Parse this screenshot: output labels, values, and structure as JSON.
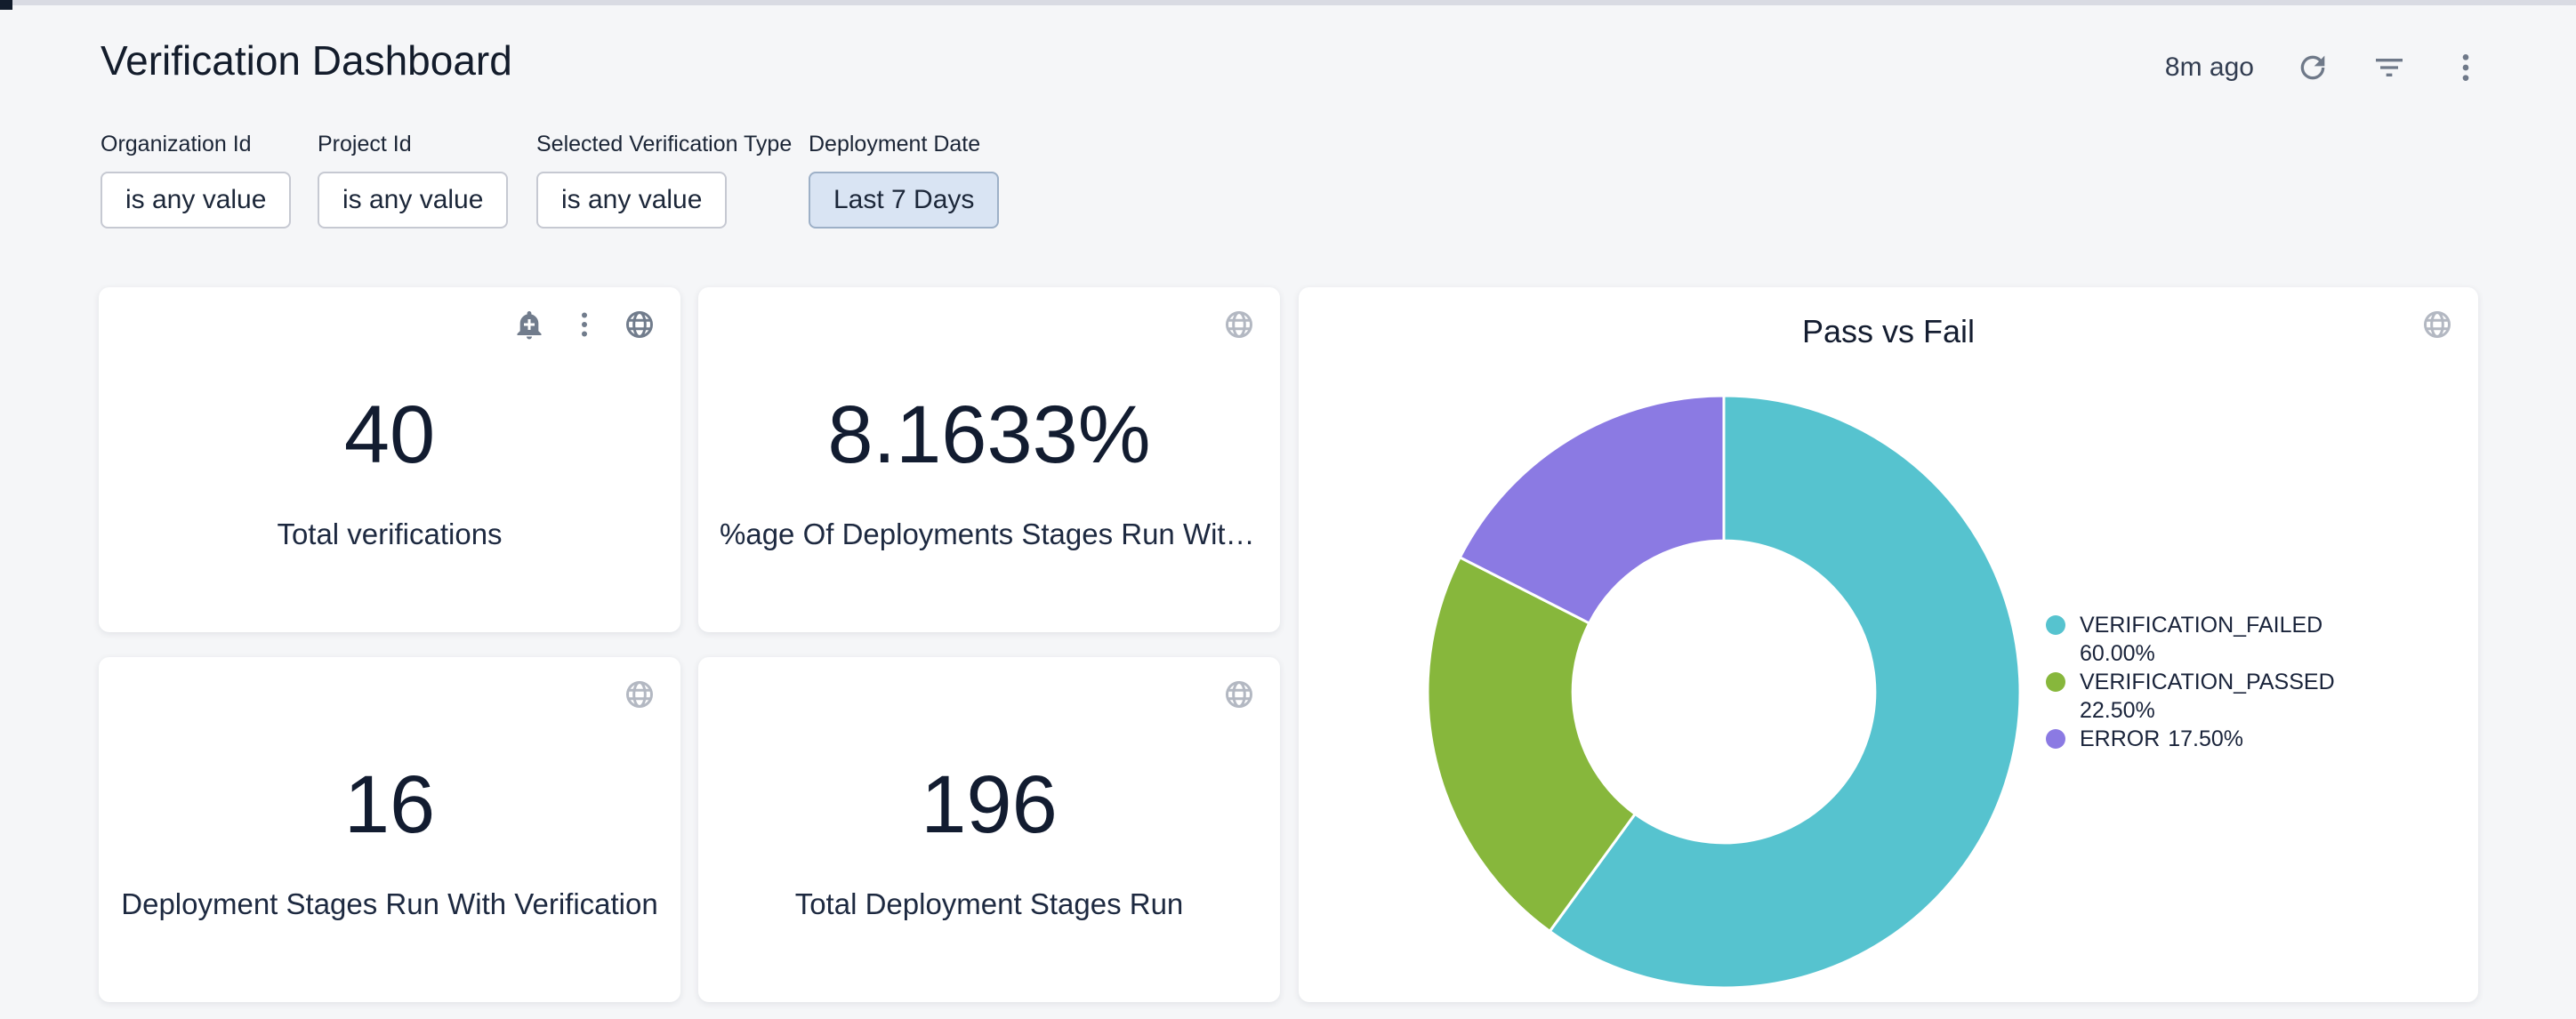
{
  "page": {
    "background_color": "#f5f6f8",
    "topbar_color": "#d9dbe3",
    "topbar_thumb_color": "#121d2c"
  },
  "header": {
    "title": "Verification Dashboard",
    "last_refresh": "8m ago",
    "icons": [
      "refresh-icon",
      "filter-icon",
      "kebab-menu-icon"
    ]
  },
  "filters": [
    {
      "label": "Organization Id",
      "value": "is any value",
      "active": false
    },
    {
      "label": "Project Id",
      "value": "is any value",
      "active": false
    },
    {
      "label": "Selected Verification Type",
      "value": "is any value",
      "active": false
    },
    {
      "label": "Deployment Date",
      "value": "Last 7 Days",
      "active": true
    }
  ],
  "kpi_tiles": [
    {
      "value": "40",
      "label": "Total verifications",
      "icons": [
        "bell-plus-icon",
        "kebab-menu-icon",
        "globe-icon"
      ]
    },
    {
      "value": "8.1633%",
      "label": "%age Of Deployments Stages Run With V…",
      "icons": [
        "globe-icon"
      ]
    },
    {
      "value": "16",
      "label": "Deployment Stages Run With Verification",
      "icons": [
        "globe-icon"
      ]
    },
    {
      "value": "196",
      "label": "Total Deployment Stages Run",
      "icons": [
        "globe-icon"
      ]
    }
  ],
  "chart_data": {
    "type": "pie",
    "donut": true,
    "title": "Pass vs Fail",
    "series": [
      {
        "name": "VERIFICATION_FAILED",
        "value": 60.0,
        "pct_label": "60.00%",
        "color": "#56c3cf"
      },
      {
        "name": "VERIFICATION_PASSED",
        "value": 22.5,
        "pct_label": "22.50%",
        "color": "#87b73c"
      },
      {
        "name": "ERROR",
        "value": 17.5,
        "pct_label": "17.50%",
        "color": "#8b7ae3"
      }
    ],
    "start_angle_deg": 0,
    "direction": "clockwise",
    "inner_radius_ratio": 0.51,
    "legend_position": "right",
    "slice_border_color": "#ffffff"
  }
}
